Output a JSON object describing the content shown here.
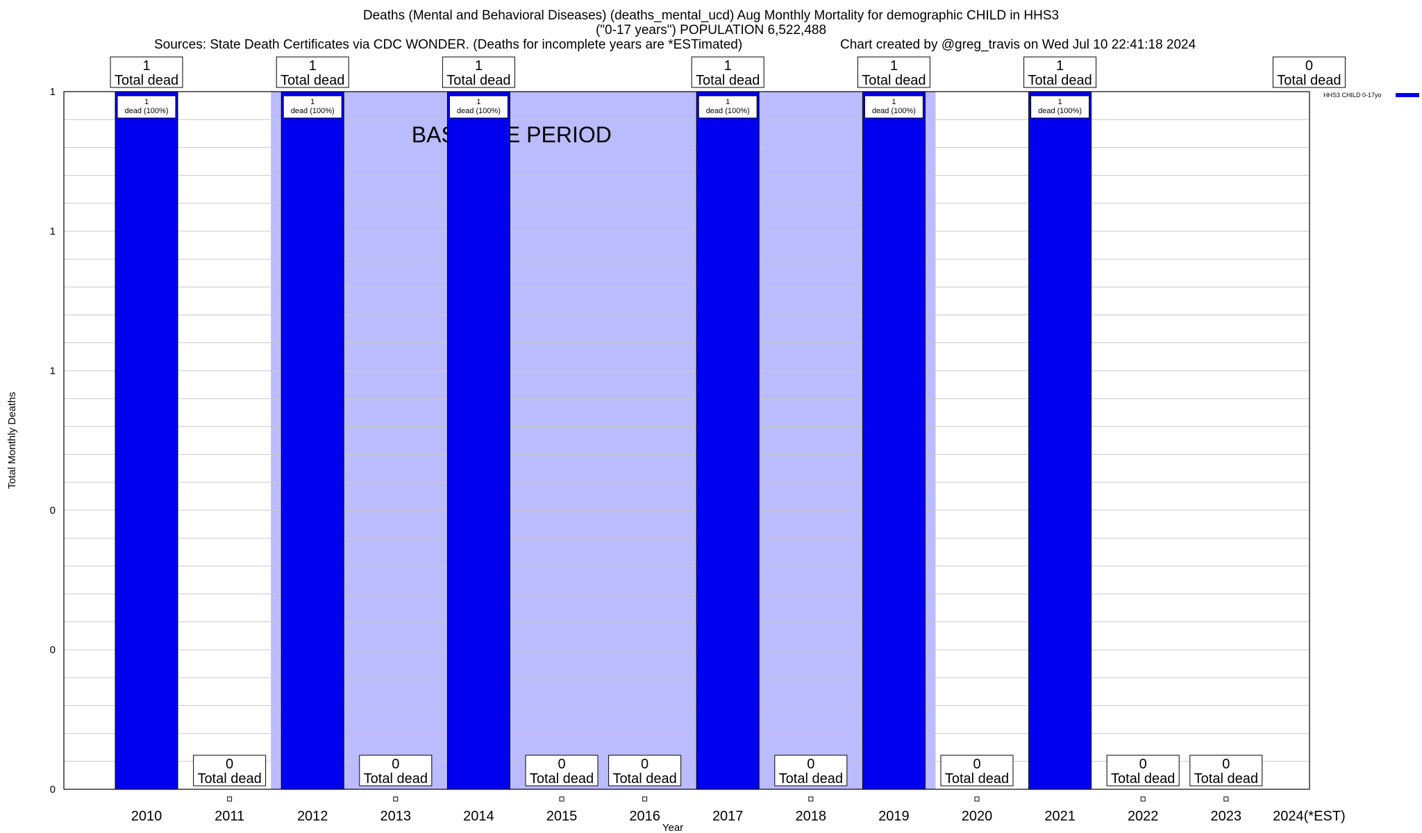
{
  "chart_data": {
    "type": "bar",
    "title": "Deaths (Mental and Behavioral Diseases) (deaths_mental_ucd) Aug Monthly Mortality for demographic CHILD in HHS3",
    "subtitle": "(\"0-17 years\") POPULATION 6,522,488",
    "sources": "Sources: State Death Certificates via CDC WONDER. (Deaths for incomplete years are *ESTimated)",
    "credit": "Chart created by @greg_travis on Wed Jul 10 22:41:18 2024",
    "xlabel": "Year",
    "ylabel": "Total Monthly Deaths",
    "ylim": [
      0,
      1
    ],
    "y_tick_labels": [
      "0",
      "0",
      "0",
      "1",
      "1",
      "1"
    ],
    "grid": true,
    "legend": {
      "position": "top-right",
      "label": "HHS3 CHILD 0-17yo",
      "color": "#0000ee"
    },
    "baseline": {
      "label": "BASELINE PERIOD",
      "start": "2012",
      "end": "2019",
      "color": "#bbbbff"
    },
    "total_label_suffix": "Total dead",
    "bar_label_text": "dead (100%)",
    "categories": [
      "2010",
      "2011",
      "2012",
      "2013",
      "2014",
      "2015",
      "2016",
      "2017",
      "2018",
      "2019",
      "2020",
      "2021",
      "2022",
      "2023",
      "2024(*EST)"
    ],
    "series": [
      {
        "name": "HHS3 CHILD 0-17yo",
        "color": "#0000ee",
        "values": [
          1,
          0,
          1,
          0,
          1,
          0,
          0,
          1,
          0,
          1,
          0,
          1,
          0,
          0,
          0
        ]
      }
    ]
  }
}
